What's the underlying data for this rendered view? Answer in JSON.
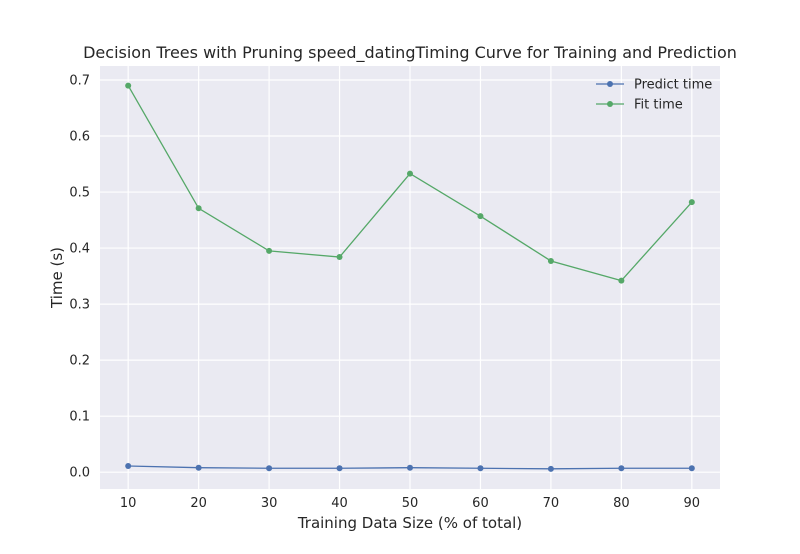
{
  "chart_data": {
    "type": "line",
    "title": "Decision Trees with Pruning speed_datingTiming Curve for Training and Prediction",
    "xlabel": "Training Data Size (% of total)",
    "ylabel": "Time (s)",
    "x": [
      10,
      20,
      30,
      40,
      50,
      60,
      70,
      80,
      90
    ],
    "xlim": [
      6,
      94
    ],
    "ylim": [
      -0.03,
      0.725
    ],
    "xticks": [
      10,
      20,
      30,
      40,
      50,
      60,
      70,
      80,
      90
    ],
    "yticks": [
      0.0,
      0.1,
      0.2,
      0.3,
      0.4,
      0.5,
      0.6,
      0.7
    ],
    "ytick_labels": [
      "0.0",
      "0.1",
      "0.2",
      "0.3",
      "0.4",
      "0.5",
      "0.6",
      "0.7"
    ],
    "grid": true,
    "legend_position": "top-right",
    "series": [
      {
        "name": "Predict time",
        "color": "#4c72b0",
        "values": [
          0.011,
          0.008,
          0.007,
          0.007,
          0.008,
          0.007,
          0.006,
          0.007,
          0.007
        ]
      },
      {
        "name": "Fit time",
        "color": "#55a868",
        "values": [
          0.69,
          0.471,
          0.395,
          0.384,
          0.533,
          0.457,
          0.377,
          0.342,
          0.482
        ]
      }
    ],
    "colors": {
      "plot_background": "#eaeaf2",
      "grid": "#ffffff"
    }
  }
}
